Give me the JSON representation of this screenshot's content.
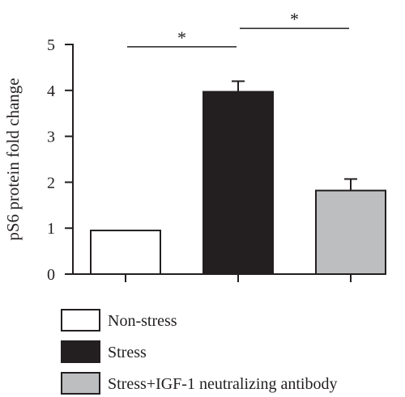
{
  "chart_data": {
    "type": "bar",
    "ylabel": "pS6 protein fold change",
    "xlabel": "",
    "ylim": [
      0,
      5
    ],
    "yticks": [
      0,
      1,
      2,
      3,
      4,
      5
    ],
    "categories": [
      "Non-stress",
      "Stress",
      "Stress+IGF-1 neutralizing antibody"
    ],
    "values": [
      0.95,
      3.97,
      1.82
    ],
    "errors": [
      0,
      0.23,
      0.25
    ],
    "bar_colors": [
      "#ffffff",
      "#231f20",
      "#bcbec0"
    ],
    "significance": [
      {
        "from": 0,
        "to": 1,
        "label": "*",
        "y": 4.95
      },
      {
        "from": 1,
        "to": 2,
        "label": "*",
        "y": 5.35
      }
    ],
    "legend": {
      "position": "bottom",
      "entries": [
        {
          "label": "Non-stress",
          "color": "#ffffff"
        },
        {
          "label": "Stress",
          "color": "#231f20"
        },
        {
          "label": "Stress+IGF-1 neutralizing antibody",
          "color": "#bcbec0"
        }
      ]
    },
    "grid": false
  }
}
